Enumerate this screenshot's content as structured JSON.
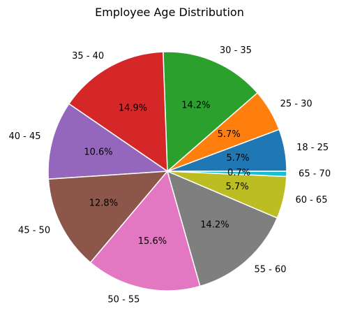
{
  "chart_data": {
    "type": "pie",
    "title": "Employee Age Distribution",
    "categories": [
      "18 - 25",
      "25 - 30",
      "30 - 35",
      "35 - 40",
      "40 - 45",
      "45 - 50",
      "50 - 55",
      "55 - 60",
      "60 - 65",
      "65 - 70"
    ],
    "values": [
      5.7,
      5.7,
      14.2,
      14.9,
      10.6,
      12.8,
      15.6,
      14.2,
      5.7,
      0.7
    ],
    "percent_labels": [
      "5.7%",
      "5.7%",
      "14.2%",
      "14.9%",
      "10.6%",
      "12.8%",
      "15.6%",
      "14.2%",
      "5.7%",
      "0.7%"
    ],
    "colors": [
      "#1f77b4",
      "#ff7f0e",
      "#2ca02c",
      "#d62728",
      "#9467bd",
      "#8c564b",
      "#e377c2",
      "#7f7f7f",
      "#bcbd22",
      "#17becf"
    ]
  }
}
